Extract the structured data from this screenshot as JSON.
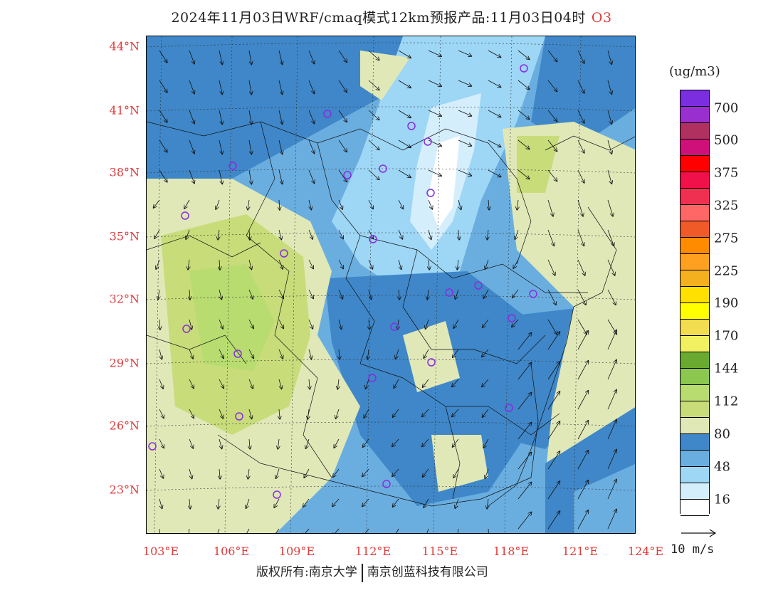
{
  "title": "2024年11月03日WRF/cmaq模式12km预报产品:11月03日04时",
  "pollutant": "O3",
  "units": "(ug/m3)",
  "lat_labels": [
    "44°N",
    "41°N",
    "38°N",
    "35°N",
    "32°N",
    "29°N",
    "26°N",
    "23°N"
  ],
  "lon_labels": [
    "103°E",
    "106°E",
    "109°E",
    "112°E",
    "115°E",
    "118°E",
    "121°E",
    "124°E"
  ],
  "colorbar": {
    "colors": [
      "#7b2ee0",
      "#9a2fd0",
      "#b03060",
      "#d0107a",
      "#ff0000",
      "#f0104a",
      "#f03050",
      "#ff6666",
      "#f05a28",
      "#ff8c00",
      "#ffa020",
      "#f5b020",
      "#ffe000",
      "#ffff00",
      "#f2dc50",
      "#f0f060",
      "#6aaa30",
      "#8cc850",
      "#b8dc70",
      "#c8dc7a",
      "#e0e8b8",
      "#3f87c8",
      "#6aaee0",
      "#9ed6f5",
      "#d4eefc",
      "#ffffff"
    ],
    "labels": [
      "700",
      "500",
      "375",
      "325",
      "275",
      "225",
      "190",
      "170",
      "144",
      "112",
      "80",
      "48",
      "16"
    ]
  },
  "vector_ref": "10 m/s",
  "footer": {
    "left": "版权所有:南京大学",
    "right": "南京创蓝科技有限公司"
  }
}
